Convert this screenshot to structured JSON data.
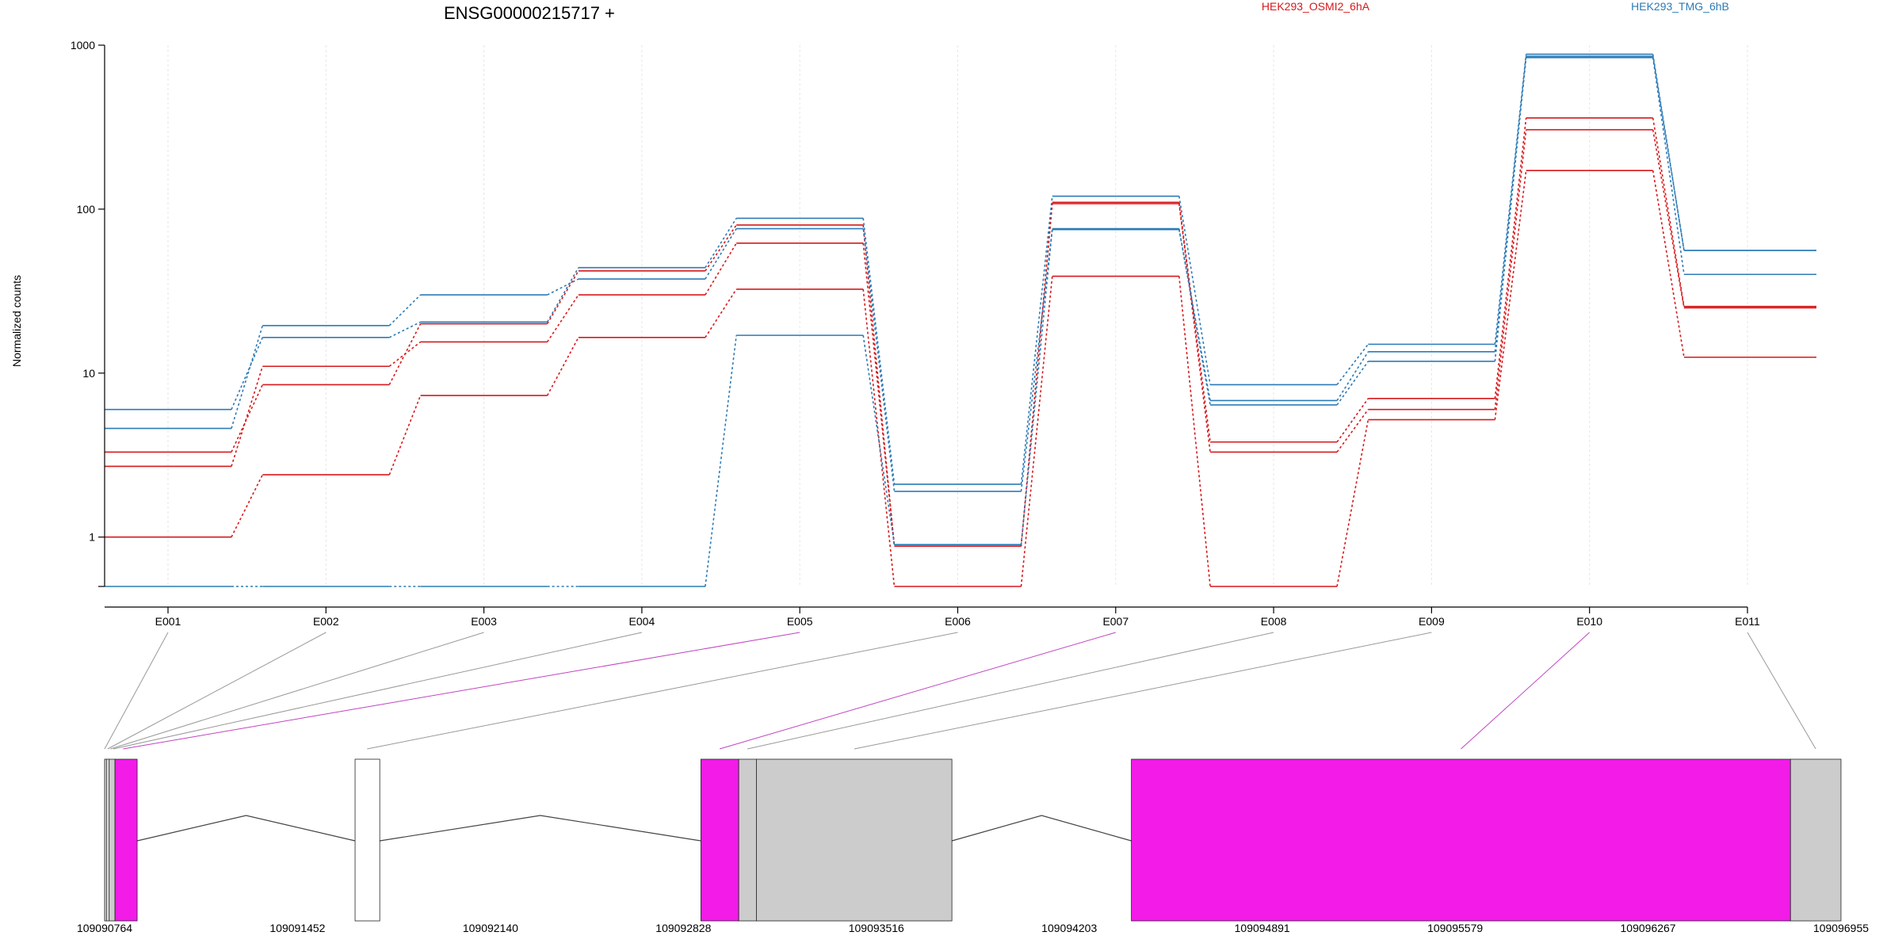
{
  "chart_data": {
    "type": "line",
    "title": "ENSG00000215717 +",
    "ylabel": "Normalized counts",
    "xlabel": "",
    "y_scale": "log",
    "ylim": [
      0.5,
      1000
    ],
    "y_ticks": [
      1,
      10,
      100,
      1000
    ],
    "grid": "vertical dotted at each exon",
    "legend_position": "top",
    "categories": [
      "E001",
      "E002",
      "E003",
      "E004",
      "E005",
      "E006",
      "E007",
      "E008",
      "E009",
      "E010",
      "E011"
    ],
    "series": [
      {
        "name": "HEK293_OSMI2_6hA",
        "color": "#d7191c",
        "values": [
          3.3,
          8.5,
          20.0,
          42.0,
          80.0,
          0.88,
          110.0,
          3.8,
          7.0,
          360.0,
          25.5
        ]
      },
      {
        "name": "HEK293_OSMI2_6hA",
        "color": "#d7191c",
        "values": [
          2.7,
          11.0,
          15.5,
          30.0,
          62.0,
          0.88,
          108.0,
          3.3,
          6.0,
          305.0,
          25.0
        ]
      },
      {
        "name": "HEK293_OSMI2_6hA",
        "color": "#d7191c",
        "values": [
          1.0,
          2.4,
          7.3,
          16.5,
          32.5,
          0.5,
          39.0,
          0.5,
          5.2,
          172.0,
          12.5
        ]
      },
      {
        "name": "HEK293_TMG_6hB",
        "color": "#2c7bb6",
        "values": [
          6.0,
          16.5,
          20.5,
          44.0,
          88.0,
          2.1,
          120.0,
          8.5,
          15.0,
          880.0,
          56.0
        ]
      },
      {
        "name": "HEK293_TMG_6hB",
        "color": "#2c7bb6",
        "values": [
          4.6,
          19.5,
          30.0,
          37.5,
          76.0,
          1.9,
          75.0,
          6.8,
          13.5,
          855.0,
          56.0
        ]
      },
      {
        "name": "HEK293_TMG_6hB",
        "color": "#2c7bb6",
        "values": [
          0.5,
          0.5,
          0.5,
          0.5,
          17.0,
          0.9,
          76.0,
          6.4,
          11.8,
          840.0,
          40.0
        ]
      }
    ],
    "legend": [
      "HEK293_OSMI2_6hA",
      "HEK293_TMG_6hB"
    ],
    "gene_model": {
      "coordinate_ticks": [
        "109090764",
        "109091452",
        "109092140",
        "109092828",
        "109093516",
        "109094203",
        "109094891",
        "109095579",
        "109096267",
        "109096955"
      ],
      "range": [
        109090764,
        109096955
      ],
      "features": [
        {
          "start": 109090764,
          "end": 109090772,
          "kind": "gray"
        },
        {
          "start": 109090772,
          "end": 109090780,
          "kind": "white"
        },
        {
          "start": 109090780,
          "end": 109090801,
          "kind": "gray"
        },
        {
          "start": 109090801,
          "end": 109090880,
          "kind": "magenta"
        },
        {
          "start": 109091657,
          "end": 109091745,
          "kind": "white"
        },
        {
          "start": 109092890,
          "end": 109093025,
          "kind": "magenta"
        },
        {
          "start": 109093025,
          "end": 109093088,
          "kind": "gray"
        },
        {
          "start": 109093088,
          "end": 109093785,
          "kind": "gray"
        },
        {
          "start": 109094425,
          "end": 109096775,
          "kind": "magenta"
        },
        {
          "start": 109096775,
          "end": 109096955,
          "kind": "gray"
        }
      ],
      "introns": [
        [
          109090880,
          109091657
        ],
        [
          109091745,
          109092890
        ],
        [
          109093785,
          109094425
        ]
      ],
      "exon_links": [
        {
          "exon": "E001",
          "pos": 109090764,
          "color": "#999999"
        },
        {
          "exon": "E002",
          "pos": 109090775,
          "color": "#999999"
        },
        {
          "exon": "E003",
          "pos": 109090785,
          "color": "#999999"
        },
        {
          "exon": "E004",
          "pos": 109090795,
          "color": "#999999"
        },
        {
          "exon": "E005",
          "pos": 109090830,
          "color": "#c044c0"
        },
        {
          "exon": "E006",
          "pos": 109091700,
          "color": "#999999"
        },
        {
          "exon": "E007",
          "pos": 109092957,
          "color": "#c044c0"
        },
        {
          "exon": "E008",
          "pos": 109093056,
          "color": "#999999"
        },
        {
          "exon": "E009",
          "pos": 109093437,
          "color": "#999999"
        },
        {
          "exon": "E010",
          "pos": 109095600,
          "color": "#c044c0"
        },
        {
          "exon": "E011",
          "pos": 109096865,
          "color": "#999999"
        }
      ]
    }
  },
  "colors": {
    "magenta": "#f21be8",
    "gray": "#cccccc",
    "white": "#ffffff"
  }
}
